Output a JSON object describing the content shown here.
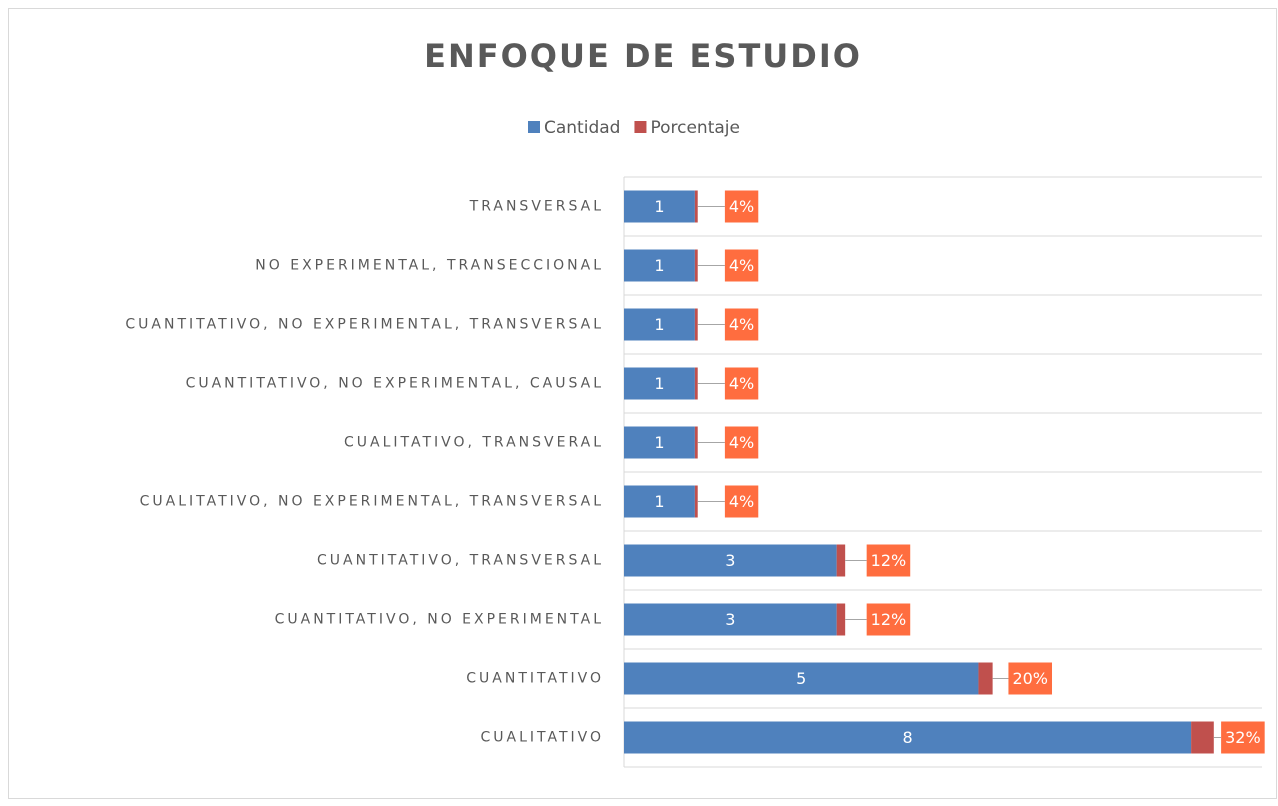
{
  "chart_data": {
    "type": "stacked_barh",
    "title": "ENFOQUE DE ESTUDIO",
    "categories": [
      "TRANSVERSAL",
      "NO EXPERIMENTAL, TRANSECCIONAL",
      "CUANTITATIVO, NO EXPERIMENTAL, TRANSVERSAL",
      "CUANTITATIVO, NO EXPERIMENTAL, CAUSAL",
      "CUALITATIVO, TRANSVERAL",
      "CUALITATIVO, NO EXPERIMENTAL, TRANSVERSAL",
      "CUANTITATIVO, TRANSVERSAL",
      "CUANTITATIVO, NO EXPERIMENTAL",
      "CUANTITATIVO",
      "CUALITATIVO"
    ],
    "series": [
      {
        "name": "Cantidad",
        "color": "#4f81bd",
        "values": [
          1,
          1,
          1,
          1,
          1,
          1,
          3,
          3,
          5,
          8
        ]
      },
      {
        "name": "Porcentaje",
        "color": "#c0504d",
        "values": [
          0.04,
          0.04,
          0.04,
          0.04,
          0.04,
          0.04,
          0.12,
          0.12,
          0.2,
          0.32
        ],
        "value_labels": [
          "4%",
          "4%",
          "4%",
          "4%",
          "4%",
          "4%",
          "12%",
          "12%",
          "20%",
          "32%"
        ],
        "label_color": "#ff6d3f"
      }
    ],
    "xlim": [
      0,
      9
    ],
    "grid": true,
    "legend": "top"
  }
}
